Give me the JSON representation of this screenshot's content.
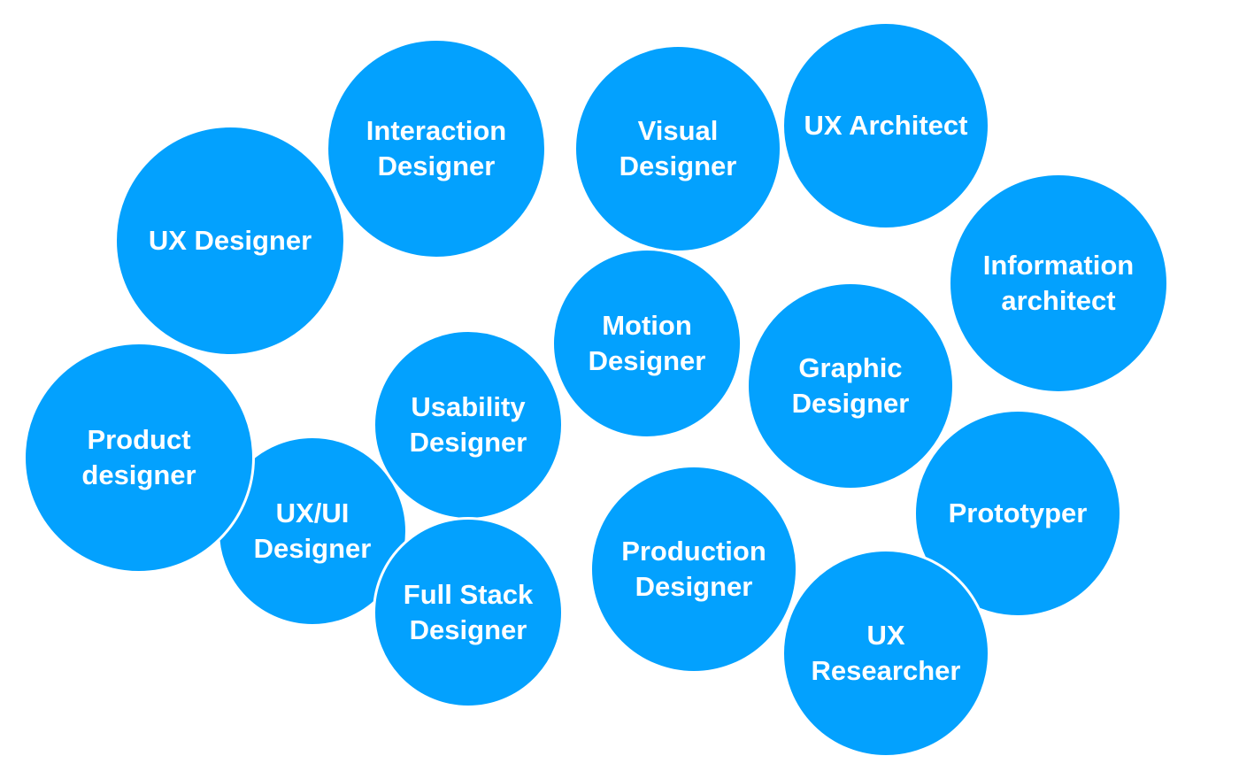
{
  "colors": {
    "bubble": "#03a1fe",
    "text": "#ffffff",
    "background": "#ffffff"
  },
  "bubbles": [
    {
      "id": "ux-ui-designer",
      "label": "UX/UI\nDesigner"
    },
    {
      "id": "product-designer",
      "label": "Product\ndesigner"
    },
    {
      "id": "ux-designer",
      "label": "UX Designer"
    },
    {
      "id": "interaction-designer",
      "label": "Interaction\nDesigner"
    },
    {
      "id": "visual-designer",
      "label": "Visual\nDesigner"
    },
    {
      "id": "ux-architect",
      "label": "UX Architect"
    },
    {
      "id": "information-architect",
      "label": "Information\narchitect"
    },
    {
      "id": "motion-designer",
      "label": "Motion\nDesigner"
    },
    {
      "id": "graphic-designer",
      "label": "Graphic\nDesigner"
    },
    {
      "id": "usability-designer",
      "label": "Usability\nDesigner"
    },
    {
      "id": "full-stack-designer",
      "label": "Full Stack\nDesigner"
    },
    {
      "id": "production-designer",
      "label": "Production\nDesigner"
    },
    {
      "id": "prototyper",
      "label": "Prototyper"
    },
    {
      "id": "ux-researcher",
      "label": "UX\nResearcher"
    }
  ]
}
